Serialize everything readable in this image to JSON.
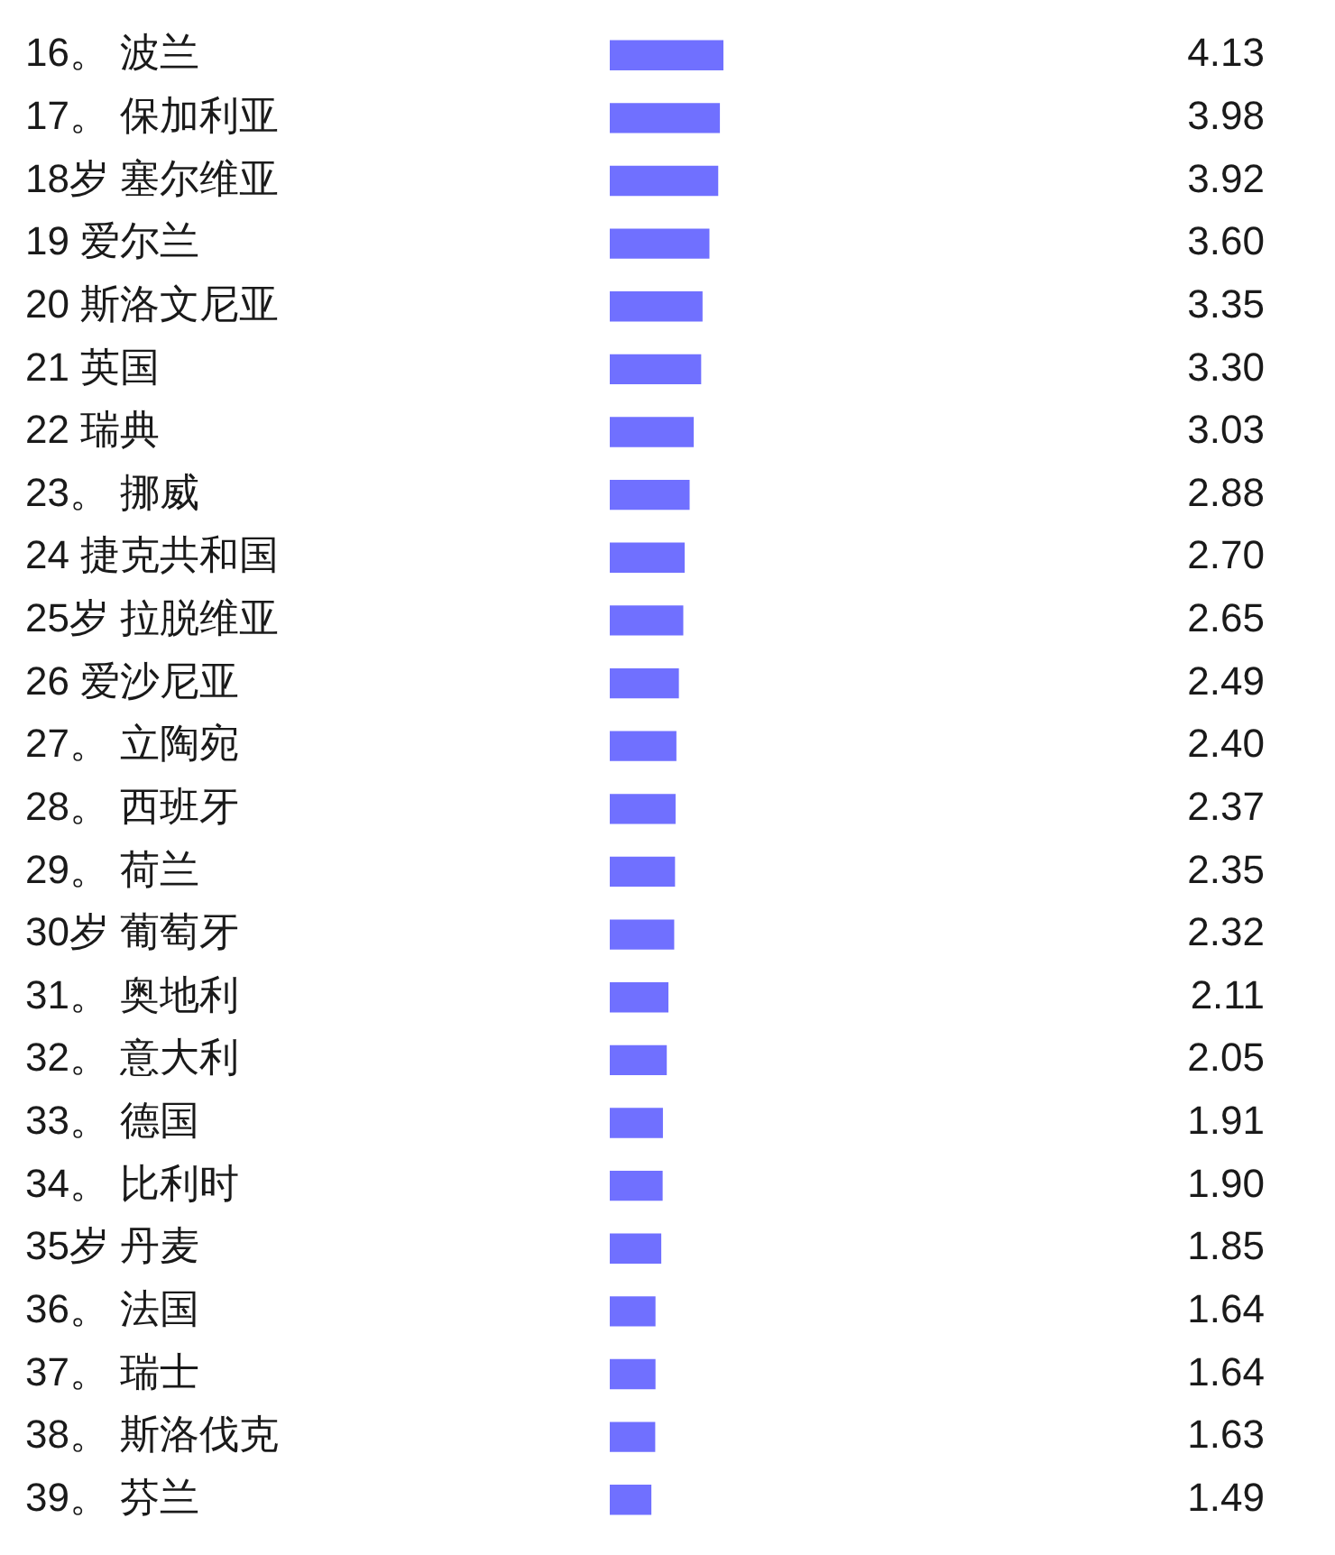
{
  "chart_data": {
    "type": "bar",
    "orientation": "horizontal",
    "tick_labels": "y",
    "categories": [
      "16。 波兰",
      "17。 保加利亚",
      "18岁 塞尔维亚",
      "19 爱尔兰",
      "20 斯洛文尼亚",
      "21 英国",
      "22 瑞典",
      "23。 挪威",
      "24 捷克共和国",
      "25岁 拉脱维亚",
      "26 爱沙尼亚",
      "27。 立陶宛",
      "28。 西班牙",
      "29。 荷兰",
      "30岁 葡萄牙",
      "31。 奥地利",
      "32。 意大利",
      "33。 德国",
      "34。 比利时",
      "35岁 丹麦",
      "36。 法国",
      "37。 瑞士",
      "38。 斯洛伐克",
      "39。 芬兰"
    ],
    "values": [
      4.13,
      3.98,
      3.92,
      3.6,
      3.35,
      3.3,
      3.03,
      2.88,
      2.7,
      2.65,
      2.49,
      2.4,
      2.37,
      2.35,
      2.32,
      2.11,
      2.05,
      1.91,
      1.9,
      1.85,
      1.64,
      1.64,
      1.63,
      1.49
    ],
    "value_labels": [
      "4.13",
      "3.98",
      "3.92",
      "3.60",
      "3.35",
      "3.30",
      "3.03",
      "2.88",
      "2.70",
      "2.65",
      "2.49",
      "2.40",
      "2.37",
      "2.35",
      "2.32",
      "2.11",
      "2.05",
      "1.91",
      "1.90",
      "1.85",
      "1.64",
      "1.64",
      "1.63",
      "1.49"
    ],
    "color": "#7070ff"
  }
}
